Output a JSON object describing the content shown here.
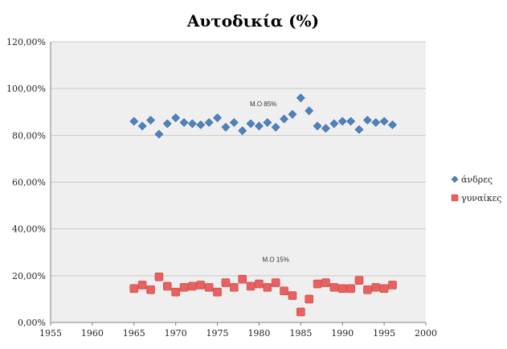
{
  "chart_data": {
    "type": "scatter",
    "title": "Αυτοδικία (%)",
    "xlabel": "",
    "ylabel": "",
    "xlim": [
      1955,
      2000
    ],
    "ylim": [
      0,
      1.2
    ],
    "x_ticks": [
      "1955",
      "1960",
      "1965",
      "1970",
      "1975",
      "1980",
      "1985",
      "1990",
      "1995",
      "2000"
    ],
    "y_ticks": [
      "0,00%",
      "20,00%",
      "40,00%",
      "60,00%",
      "80,00%",
      "100,00%",
      "120,00%"
    ],
    "grid": "horizontal",
    "legend_position": "right",
    "series": [
      {
        "name": "άνδρες",
        "color": "#4f81bd",
        "marker": "diamond",
        "points": [
          {
            "x": 1965,
            "y": 0.86
          },
          {
            "x": 1966,
            "y": 0.84
          },
          {
            "x": 1967,
            "y": 0.865
          },
          {
            "x": 1968,
            "y": 0.805
          },
          {
            "x": 1969,
            "y": 0.85
          },
          {
            "x": 1970,
            "y": 0.875
          },
          {
            "x": 1971,
            "y": 0.855
          },
          {
            "x": 1972,
            "y": 0.85
          },
          {
            "x": 1973,
            "y": 0.845
          },
          {
            "x": 1974,
            "y": 0.855
          },
          {
            "x": 1975,
            "y": 0.875
          },
          {
            "x": 1976,
            "y": 0.835
          },
          {
            "x": 1977,
            "y": 0.855
          },
          {
            "x": 1978,
            "y": 0.82
          },
          {
            "x": 1979,
            "y": 0.85
          },
          {
            "x": 1980,
            "y": 0.84
          },
          {
            "x": 1981,
            "y": 0.855
          },
          {
            "x": 1982,
            "y": 0.835
          },
          {
            "x": 1983,
            "y": 0.87
          },
          {
            "x": 1984,
            "y": 0.89
          },
          {
            "x": 1985,
            "y": 0.96
          },
          {
            "x": 1986,
            "y": 0.905
          },
          {
            "x": 1987,
            "y": 0.84
          },
          {
            "x": 1988,
            "y": 0.83
          },
          {
            "x": 1989,
            "y": 0.85
          },
          {
            "x": 1990,
            "y": 0.86
          },
          {
            "x": 1991,
            "y": 0.86
          },
          {
            "x": 1992,
            "y": 0.825
          },
          {
            "x": 1993,
            "y": 0.865
          },
          {
            "x": 1994,
            "y": 0.855
          },
          {
            "x": 1995,
            "y": 0.86
          },
          {
            "x": 1996,
            "y": 0.845
          }
        ]
      },
      {
        "name": "γυναίκες",
        "color": "#e8605f",
        "marker": "square",
        "points": [
          {
            "x": 1965,
            "y": 0.145
          },
          {
            "x": 1966,
            "y": 0.16
          },
          {
            "x": 1967,
            "y": 0.14
          },
          {
            "x": 1968,
            "y": 0.195
          },
          {
            "x": 1969,
            "y": 0.155
          },
          {
            "x": 1970,
            "y": 0.13
          },
          {
            "x": 1971,
            "y": 0.15
          },
          {
            "x": 1972,
            "y": 0.155
          },
          {
            "x": 1973,
            "y": 0.16
          },
          {
            "x": 1974,
            "y": 0.15
          },
          {
            "x": 1975,
            "y": 0.13
          },
          {
            "x": 1976,
            "y": 0.17
          },
          {
            "x": 1977,
            "y": 0.15
          },
          {
            "x": 1978,
            "y": 0.185
          },
          {
            "x": 1979,
            "y": 0.155
          },
          {
            "x": 1980,
            "y": 0.165
          },
          {
            "x": 1981,
            "y": 0.15
          },
          {
            "x": 1982,
            "y": 0.17
          },
          {
            "x": 1983,
            "y": 0.135
          },
          {
            "x": 1984,
            "y": 0.115
          },
          {
            "x": 1985,
            "y": 0.045
          },
          {
            "x": 1986,
            "y": 0.1
          },
          {
            "x": 1987,
            "y": 0.165
          },
          {
            "x": 1988,
            "y": 0.17
          },
          {
            "x": 1989,
            "y": 0.15
          },
          {
            "x": 1990,
            "y": 0.145
          },
          {
            "x": 1991,
            "y": 0.145
          },
          {
            "x": 1992,
            "y": 0.18
          },
          {
            "x": 1993,
            "y": 0.14
          },
          {
            "x": 1994,
            "y": 0.15
          },
          {
            "x": 1995,
            "y": 0.145
          },
          {
            "x": 1996,
            "y": 0.16
          }
        ]
      }
    ],
    "annotations": [
      {
        "text": "M.O 85%",
        "x": 1980.5,
        "y": 0.935
      },
      {
        "text": "M.O 15%",
        "x": 1982,
        "y": 0.27
      }
    ]
  }
}
